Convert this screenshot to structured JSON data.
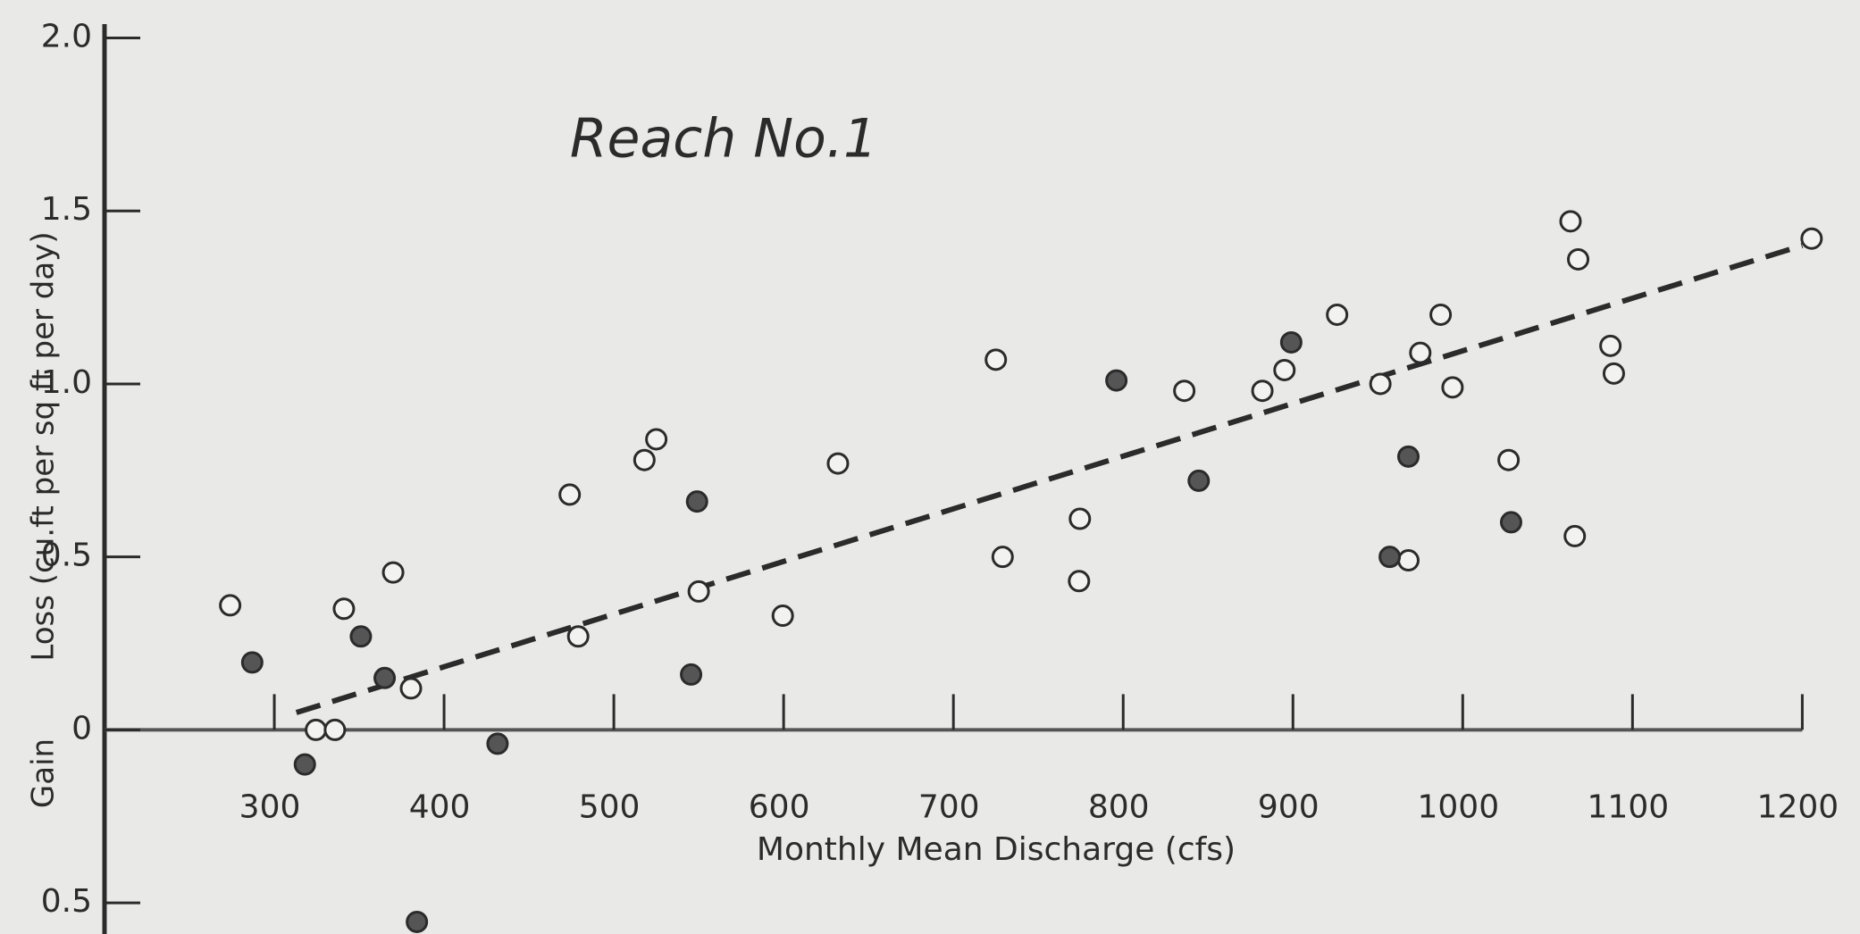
{
  "chart_data": {
    "type": "scatter",
    "title": "Reach No.1",
    "x_label": "Monthly Mean Discharge (cfs)",
    "y_label": "Loss (cu.ft per sq ft per day)",
    "y_label_lower": "Gain",
    "xlim": [
      200,
      1234
    ],
    "ylim": [
      -0.59,
      2.04
    ],
    "xticks": [
      300,
      400,
      500,
      600,
      700,
      800,
      900,
      1000,
      1100,
      1200
    ],
    "yticks": [
      {
        "value": -0.5,
        "label": "0.5"
      },
      0,
      0.5,
      {
        "value": 1,
        "label": "1.0"
      },
      1.5,
      {
        "value": 2,
        "label": "2.0"
      }
    ],
    "series": [
      {
        "name": "open",
        "color": "#2b2b2b",
        "marker": "open",
        "x": [
          274,
          324.5,
          335.7,
          341,
          370,
          380.5,
          474,
          479,
          518,
          525,
          550,
          599.5,
          632,
          725,
          729,
          774.5,
          774,
          836,
          882,
          895,
          926,
          951.5,
          975,
          987,
          994,
          968,
          1027,
          1063.5,
          1068,
          1066,
          1087,
          1089,
          1205.5
        ],
        "values": [
          0.36,
          0,
          0,
          0.35,
          0.455,
          0.12,
          0.68,
          0.27,
          0.78,
          0.84,
          0.4,
          0.33,
          0.77,
          1.07,
          0.5,
          0.61,
          0.43,
          0.98,
          0.98,
          1.04,
          1.2,
          1.0,
          1.09,
          1.2,
          0.99,
          0.49,
          0.78,
          1.47,
          1.36,
          0.56,
          1.11,
          1.03,
          1.42
        ]
      },
      {
        "name": "filled",
        "color": "#2b2b2b",
        "marker": "filled",
        "x": [
          287,
          318,
          351,
          365,
          384,
          431.5,
          545.5,
          549,
          796,
          844.5,
          899,
          968,
          1028.5,
          957
        ],
        "values": [
          0.195,
          -0.1,
          0.27,
          0.15,
          -0.555,
          -0.04,
          0.16,
          0.66,
          1.01,
          0.72,
          1.12,
          0.79,
          0.6,
          0.5
        ]
      }
    ],
    "trend_line": {
      "x": [
        313,
        1200
      ],
      "values": [
        0.05,
        1.4
      ],
      "dashed": true
    }
  }
}
